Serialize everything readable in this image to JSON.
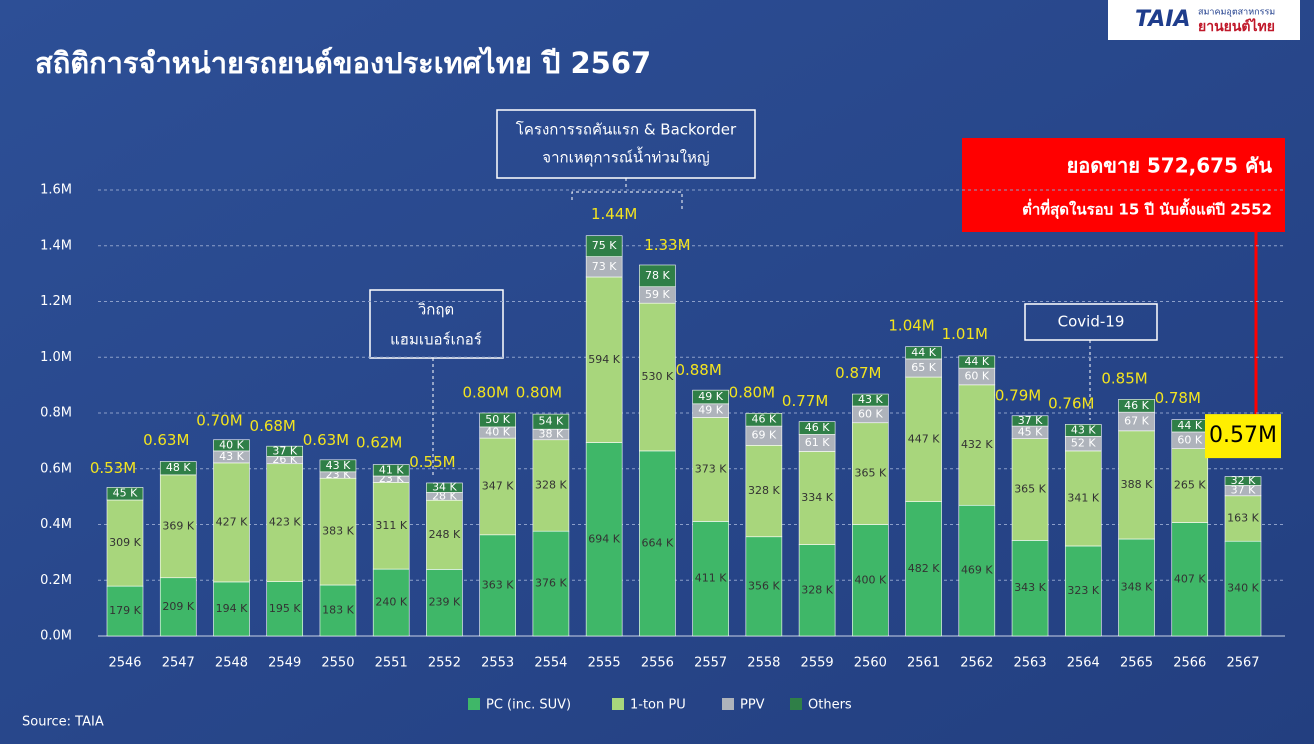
{
  "header": {
    "title": "สถิติการจำหน่ายรถยนต์ของประเทศไทย ปี 2567",
    "logo": "TAIA",
    "logo_sub1": "สมาคมอุตสาหกรรม",
    "logo_sub2": "ยานยนต์ไทย"
  },
  "annotations": {
    "first_car_1": "โครงการรถคันแรก & Backorder",
    "first_car_2": "จากเหตุการณ์น้ำท่วมใหญ่",
    "crisis_1": "วิกฤต",
    "crisis_2": "แฮมเบอร์เกอร์",
    "covid": "Covid-19",
    "sales": "ยอดขาย 572,675 คัน",
    "lowest": "ต่ำที่สุดในรอบ 15 ปี นับตั้งแต่ปี 2552"
  },
  "source": "Source: TAIA",
  "chart_data": {
    "type": "stacked_bar",
    "categories": [
      "2546",
      "2547",
      "2548",
      "2549",
      "2550",
      "2551",
      "2552",
      "2553",
      "2554",
      "2555",
      "2556",
      "2557",
      "2558",
      "2559",
      "2560",
      "2561",
      "2562",
      "2563",
      "2564",
      "2565",
      "2566",
      "2567"
    ],
    "series": [
      {
        "name": "PC (inc. SUV)",
        "color": "#3fb768",
        "values": [
          0.179,
          0.209,
          0.194,
          0.195,
          0.183,
          0.24,
          0.239,
          0.363,
          0.376,
          0.694,
          0.664,
          0.411,
          0.356,
          0.328,
          0.4,
          0.482,
          0.469,
          0.343,
          0.323,
          0.348,
          0.407,
          0.34
        ],
        "value_labels": [
          "179 K",
          "209 K",
          "194 K",
          "195 K",
          "183 K",
          "240 K",
          "239 K",
          "363 K",
          "376 K",
          "694 K",
          "664 K",
          "411 K",
          "356 K",
          "328 K",
          "400 K",
          "482 K",
          "469 K",
          "343 K",
          "323 K",
          "348 K",
          "407 K",
          "340 K"
        ]
      },
      {
        "name": "1-ton PU",
        "color": "#a8d67c",
        "values": [
          0.309,
          0.369,
          0.427,
          0.423,
          0.383,
          0.311,
          0.248,
          0.347,
          0.328,
          0.594,
          0.53,
          0.373,
          0.328,
          0.334,
          0.365,
          0.447,
          0.432,
          0.365,
          0.341,
          0.388,
          0.265,
          0.163
        ],
        "value_labels": [
          "309 K",
          "369 K",
          "427 K",
          "423 K",
          "383 K",
          "311 K",
          "248 K",
          "347 K",
          "328 K",
          "594 K",
          "530 K",
          "373 K",
          "328 K",
          "334 K",
          "365 K",
          "447 K",
          "432 K",
          "365 K",
          "341 K",
          "388 K",
          "265 K",
          "163 K"
        ]
      },
      {
        "name": "PPV",
        "color": "#aeb3bb",
        "values": [
          null,
          null,
          0.043,
          0.026,
          0.023,
          0.023,
          0.028,
          0.04,
          0.038,
          0.073,
          0.059,
          0.049,
          0.069,
          0.061,
          0.06,
          0.065,
          0.06,
          0.045,
          0.052,
          0.067,
          0.06,
          0.037
        ],
        "value_labels": [
          null,
          null,
          "43 K",
          "26 K",
          "23 K",
          "23 K",
          "28 K",
          "40 K",
          "38 K",
          "73 K",
          "59 K",
          "49 K",
          "69 K",
          "61 K",
          "60 K",
          "65 K",
          "60 K",
          "45 K",
          "52 K",
          "67 K",
          "60 K",
          "37 K"
        ]
      },
      {
        "name": "Others",
        "color": "#2f7f47",
        "values": [
          0.045,
          0.048,
          0.04,
          0.037,
          0.043,
          0.041,
          0.034,
          0.05,
          0.054,
          0.075,
          0.078,
          0.049,
          0.046,
          0.046,
          0.043,
          0.044,
          0.044,
          0.037,
          0.043,
          0.046,
          0.044,
          0.032
        ],
        "value_labels": [
          "45 K",
          "48 K",
          "40 K",
          "37 K",
          "43 K",
          "41 K",
          "34 K",
          "50 K",
          "54 K",
          "75 K",
          "78 K",
          "49 K",
          "46 K",
          "46 K",
          "43 K",
          "44 K",
          "44 K",
          "37 K",
          "43 K",
          "46 K",
          "44 K",
          "32 K"
        ]
      }
    ],
    "totals": {
      "values": [
        0.53,
        0.63,
        0.7,
        0.68,
        0.63,
        0.62,
        0.55,
        0.8,
        0.8,
        1.44,
        1.33,
        0.88,
        0.8,
        0.77,
        0.87,
        1.04,
        1.01,
        0.79,
        0.76,
        0.85,
        0.78,
        0.57
      ],
      "value_labels": [
        "0.53M",
        "0.63M",
        "0.70M",
        "0.68M",
        "0.63M",
        "0.62M",
        "0.55M",
        "0.80M",
        "0.80M",
        "1.44M",
        "1.33M",
        "0.88M",
        "0.80M",
        "0.77M",
        "0.87M",
        "1.04M",
        "1.01M",
        "0.79M",
        "0.76M",
        "0.85M",
        "0.78M",
        "0.57M"
      ]
    },
    "ylim": [
      0,
      1.6
    ],
    "yticks": [
      {
        "value": 0,
        "label": "0.0M"
      },
      {
        "value": 0.2,
        "label": "0.2M"
      },
      {
        "value": 0.4,
        "label": "0.4M"
      },
      {
        "value": 0.6,
        "label": "0.6M"
      },
      {
        "value": 0.8,
        "label": "0.8M"
      },
      {
        "value": 1.0,
        "label": "1.0M"
      },
      {
        "value": 1.2,
        "label": "1.2M"
      },
      {
        "value": 1.4,
        "label": "1.4M"
      },
      {
        "value": 1.6,
        "label": "1.6M"
      }
    ],
    "grid": true,
    "legend": "bottom"
  }
}
